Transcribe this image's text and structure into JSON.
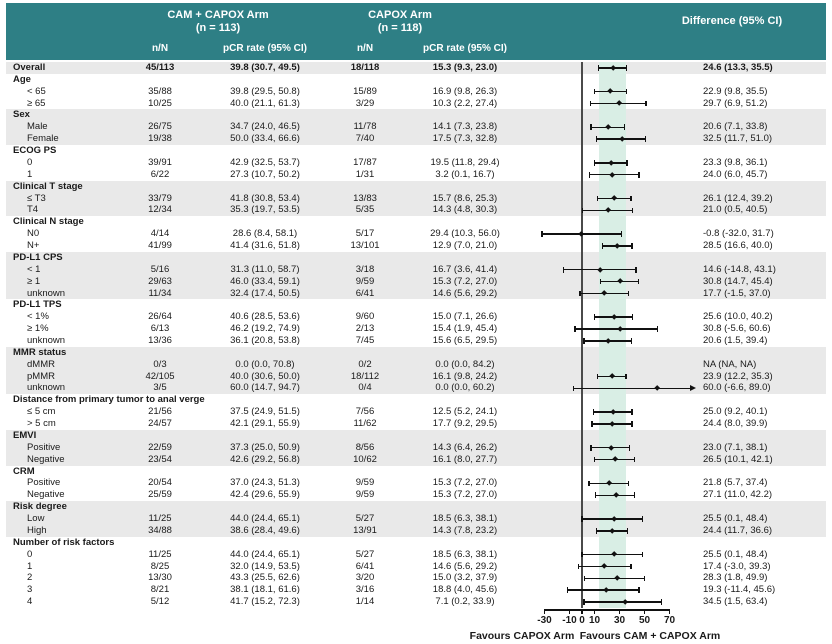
{
  "header": {
    "arm1_title": "CAM + CAPOX Arm",
    "arm1_n": "(n = 113)",
    "arm2_title": "CAPOX Arm",
    "arm2_n": "(n = 118)",
    "difference_title": "Difference (95% CI)",
    "col_nn": "n/N",
    "col_pcr": "pCR rate (95% CI)"
  },
  "footer": {
    "favours_left": "Favours CAPOX Arm",
    "favours_right": "Favours CAM + CAPOX Arm"
  },
  "colors": {
    "header_teal": "#2e7f85",
    "row_shade": "#e9e9e9",
    "overall_ci_band": "#d9eee5",
    "marker": "#111111",
    "zero_line": "#4a4a4a"
  },
  "chart_data": {
    "type": "forest",
    "x_axis": {
      "ticks": [
        -30,
        -10,
        0,
        10,
        30,
        50,
        70
      ],
      "zero_ref": 0,
      "shaded_band": [
        13.3,
        35.5
      ]
    },
    "groups": [
      {
        "name": null,
        "shaded": true,
        "rows": [
          {
            "label": "Overall",
            "bold": true,
            "nn1": "45/113",
            "pcr1": "39.8 (30.7, 49.5)",
            "nn2": "18/118",
            "pcr2": "15.3 (9.3, 23.0)",
            "diff": "24.6 (13.3, 35.5)",
            "est": 24.6,
            "lo": 13.3,
            "hi": 35.5
          }
        ]
      },
      {
        "name": "Age",
        "shaded": false,
        "rows": [
          {
            "label": "< 65",
            "nn1": "35/88",
            "pcr1": "39.8 (29.5, 50.8)",
            "nn2": "15/89",
            "pcr2": "16.9 (9.8, 26.3)",
            "diff": "22.9 (9.8, 35.5)",
            "est": 22.9,
            "lo": 9.8,
            "hi": 35.5
          },
          {
            "label": "≥ 65",
            "nn1": "10/25",
            "pcr1": "40.0 (21.1, 61.3)",
            "nn2": "3/29",
            "pcr2": "10.3 (2.2, 27.4)",
            "diff": "29.7 (6.9, 51.2)",
            "est": 29.7,
            "lo": 6.9,
            "hi": 51.2
          }
        ]
      },
      {
        "name": "Sex",
        "shaded": true,
        "rows": [
          {
            "label": "Male",
            "nn1": "26/75",
            "pcr1": "34.7 (24.0, 46.5)",
            "nn2": "11/78",
            "pcr2": "14.1 (7.3, 23.8)",
            "diff": "20.6 (7.1, 33.8)",
            "est": 20.6,
            "lo": 7.1,
            "hi": 33.8
          },
          {
            "label": "Female",
            "nn1": "19/38",
            "pcr1": "50.0 (33.4, 66.6)",
            "nn2": "7/40",
            "pcr2": "17.5 (7.3, 32.8)",
            "diff": "32.5 (11.7, 51.0)",
            "est": 32.5,
            "lo": 11.7,
            "hi": 51.0
          }
        ]
      },
      {
        "name": "ECOG PS",
        "shaded": false,
        "rows": [
          {
            "label": "0",
            "nn1": "39/91",
            "pcr1": "42.9 (32.5, 53.7)",
            "nn2": "17/87",
            "pcr2": "19.5 (11.8, 29.4)",
            "diff": "23.3 (9.8, 36.1)",
            "est": 23.3,
            "lo": 9.8,
            "hi": 36.1
          },
          {
            "label": "1",
            "nn1": "6/22",
            "pcr1": "27.3 (10.7, 50.2)",
            "nn2": "1/31",
            "pcr2": "3.2 (0.1, 16.7)",
            "diff": "24.0 (6.0, 45.7)",
            "est": 24.0,
            "lo": 6.0,
            "hi": 45.7
          }
        ]
      },
      {
        "name": "Clinical T stage",
        "shaded": true,
        "rows": [
          {
            "label": "≤ T3",
            "nn1": "33/79",
            "pcr1": "41.8 (30.8, 53.4)",
            "nn2": "13/83",
            "pcr2": "15.7 (8.6, 25.3)",
            "diff": "26.1 (12.4, 39.2)",
            "est": 26.1,
            "lo": 12.4,
            "hi": 39.2
          },
          {
            "label": "T4",
            "nn1": "12/34",
            "pcr1": "35.3 (19.7, 53.5)",
            "nn2": "5/35",
            "pcr2": "14.3 (4.8, 30.3)",
            "diff": "21.0 (0.5, 40.5)",
            "est": 21.0,
            "lo": 0.5,
            "hi": 40.5
          }
        ]
      },
      {
        "name": "Clinical N stage",
        "shaded": false,
        "rows": [
          {
            "label": "N0",
            "nn1": "4/14",
            "pcr1": "28.6 (8.4, 58.1)",
            "nn2": "5/17",
            "pcr2": "29.4 (10.3, 56.0)",
            "diff": "-0.8 (-32.0, 31.7)",
            "est": -0.8,
            "lo": -32.0,
            "hi": 31.7
          },
          {
            "label": "N+",
            "nn1": "41/99",
            "pcr1": "41.4 (31.6, 51.8)",
            "nn2": "13/101",
            "pcr2": "12.9 (7.0, 21.0)",
            "diff": "28.5 (16.6, 40.0)",
            "est": 28.5,
            "lo": 16.6,
            "hi": 40.0
          }
        ]
      },
      {
        "name": "PD-L1 CPS",
        "shaded": true,
        "rows": [
          {
            "label": "< 1",
            "nn1": "5/16",
            "pcr1": "31.3 (11.0, 58.7)",
            "nn2": "3/18",
            "pcr2": "16.7 (3.6, 41.4)",
            "diff": "14.6 (-14.8, 43.1)",
            "est": 14.6,
            "lo": -14.8,
            "hi": 43.1
          },
          {
            "label": "≥ 1",
            "nn1": "29/63",
            "pcr1": "46.0 (33.4, 59.1)",
            "nn2": "9/59",
            "pcr2": "15.3 (7.2, 27.0)",
            "diff": "30.8 (14.7, 45.4)",
            "est": 30.8,
            "lo": 14.7,
            "hi": 45.4
          },
          {
            "label": "unknown",
            "nn1": "11/34",
            "pcr1": "32.4 (17.4, 50.5)",
            "nn2": "6/41",
            "pcr2": "14.6 (5.6, 29.2)",
            "diff": "17.7 (-1.5, 37.0)",
            "est": 17.7,
            "lo": -1.5,
            "hi": 37.0
          }
        ]
      },
      {
        "name": "PD-L1 TPS",
        "shaded": false,
        "rows": [
          {
            "label": "< 1%",
            "nn1": "26/64",
            "pcr1": "40.6 (28.5, 53.6)",
            "nn2": "9/60",
            "pcr2": "15.0 (7.1, 26.6)",
            "diff": "25.6 (10.0, 40.2)",
            "est": 25.6,
            "lo": 10.0,
            "hi": 40.2
          },
          {
            "label": "≥ 1%",
            "nn1": "6/13",
            "pcr1": "46.2 (19.2, 74.9)",
            "nn2": "2/13",
            "pcr2": "15.4 (1.9, 45.4)",
            "diff": "30.8 (-5.6, 60.6)",
            "est": 30.8,
            "lo": -5.6,
            "hi": 60.6
          },
          {
            "label": "unknown",
            "nn1": "13/36",
            "pcr1": "36.1 (20.8, 53.8)",
            "nn2": "7/45",
            "pcr2": "15.6 (6.5, 29.5)",
            "diff": "20.6 (1.5, 39.4)",
            "est": 20.6,
            "lo": 1.5,
            "hi": 39.4
          }
        ]
      },
      {
        "name": "MMR status",
        "shaded": true,
        "rows": [
          {
            "label": "dMMR",
            "nn1": "0/3",
            "pcr1": "0.0 (0.0, 70.8)",
            "nn2": "0/2",
            "pcr2": "0.0 (0.0, 84.2)",
            "diff": "NA (NA, NA)",
            "est": null,
            "lo": null,
            "hi": null
          },
          {
            "label": "pMMR",
            "nn1": "42/105",
            "pcr1": "40.0 (30.6, 50.0)",
            "nn2": "18/112",
            "pcr2": "16.1 (9.8, 24.2)",
            "diff": "23.9 (12.2, 35.3)",
            "est": 23.9,
            "lo": 12.2,
            "hi": 35.3
          },
          {
            "label": "unknown",
            "nn1": "3/5",
            "pcr1": "60.0 (14.7, 94.7)",
            "nn2": "0/4",
            "pcr2": "0.0 (0.0, 60.2)",
            "diff": "60.0 (-6.6, 89.0)",
            "est": 60.0,
            "lo": -6.6,
            "hi": 89.0,
            "arrow_right": true
          }
        ]
      },
      {
        "name": "Distance from primary tumor to anal verge",
        "shaded": false,
        "rows": [
          {
            "label": "≤ 5 cm",
            "nn1": "21/56",
            "pcr1": "37.5 (24.9, 51.5)",
            "nn2": "7/56",
            "pcr2": "12.5 (5.2, 24.1)",
            "diff": "25.0 (9.2, 40.1)",
            "est": 25.0,
            "lo": 9.2,
            "hi": 40.1
          },
          {
            "label": "> 5 cm",
            "nn1": "24/57",
            "pcr1": "42.1 (29.1, 55.9)",
            "nn2": "11/62",
            "pcr2": "17.7 (9.2, 29.5)",
            "diff": "24.4 (8.0, 39.9)",
            "est": 24.4,
            "lo": 8.0,
            "hi": 39.9
          }
        ]
      },
      {
        "name": "EMVI",
        "shaded": true,
        "rows": [
          {
            "label": "Positive",
            "nn1": "22/59",
            "pcr1": "37.3 (25.0, 50.9)",
            "nn2": "8/56",
            "pcr2": "14.3 (6.4, 26.2)",
            "diff": "23.0 (7.1, 38.1)",
            "est": 23.0,
            "lo": 7.1,
            "hi": 38.1
          },
          {
            "label": "Negative",
            "nn1": "23/54",
            "pcr1": "42.6 (29.2, 56.8)",
            "nn2": "10/62",
            "pcr2": "16.1 (8.0, 27.7)",
            "diff": "26.5 (10.1, 42.1)",
            "est": 26.5,
            "lo": 10.1,
            "hi": 42.1
          }
        ]
      },
      {
        "name": "CRM",
        "shaded": false,
        "rows": [
          {
            "label": "Positive",
            "nn1": "20/54",
            "pcr1": "37.0 (24.3, 51.3)",
            "nn2": "9/59",
            "pcr2": "15.3 (7.2, 27.0)",
            "diff": "21.8 (5.7, 37.4)",
            "est": 21.8,
            "lo": 5.7,
            "hi": 37.4
          },
          {
            "label": "Negative",
            "nn1": "25/59",
            "pcr1": "42.4 (29.6, 55.9)",
            "nn2": "9/59",
            "pcr2": "15.3 (7.2, 27.0)",
            "diff": "27.1 (11.0, 42.2)",
            "est": 27.1,
            "lo": 11.0,
            "hi": 42.2
          }
        ]
      },
      {
        "name": "Risk degree",
        "shaded": true,
        "rows": [
          {
            "label": "Low",
            "nn1": "11/25",
            "pcr1": "44.0 (24.4, 65.1)",
            "nn2": "5/27",
            "pcr2": "18.5 (6.3, 38.1)",
            "diff": "25.5 (0.1, 48.4)",
            "est": 25.5,
            "lo": 0.1,
            "hi": 48.4
          },
          {
            "label": "High",
            "nn1": "34/88",
            "pcr1": "38.6 (28.4, 49.6)",
            "nn2": "13/91",
            "pcr2": "14.3 (7.8, 23.2)",
            "diff": "24.4 (11.7, 36.6)",
            "est": 24.4,
            "lo": 11.7,
            "hi": 36.6
          }
        ]
      },
      {
        "name": "Number of risk factors",
        "shaded": false,
        "rows": [
          {
            "label": "0",
            "nn1": "11/25",
            "pcr1": "44.0 (24.4, 65.1)",
            "nn2": "5/27",
            "pcr2": "18.5 (6.3, 38.1)",
            "diff": "25.5 (0.1, 48.4)",
            "est": 25.5,
            "lo": 0.1,
            "hi": 48.4
          },
          {
            "label": "1",
            "nn1": "8/25",
            "pcr1": "32.0 (14.9, 53.5)",
            "nn2": "6/41",
            "pcr2": "14.6 (5.6, 29.2)",
            "diff": "17.4 (-3.0, 39.3)",
            "est": 17.4,
            "lo": -3.0,
            "hi": 39.3
          },
          {
            "label": "2",
            "nn1": "13/30",
            "pcr1": "43.3 (25.5, 62.6)",
            "nn2": "3/20",
            "pcr2": "15.0 (3.2, 37.9)",
            "diff": "28.3 (1.8, 49.9)",
            "est": 28.3,
            "lo": 1.8,
            "hi": 49.9
          },
          {
            "label": "3",
            "nn1": "8/21",
            "pcr1": "38.1 (18.1, 61.6)",
            "nn2": "3/16",
            "pcr2": "18.8 (4.0, 45.6)",
            "diff": "19.3 (-11.4, 45.6)",
            "est": 19.3,
            "lo": -11.4,
            "hi": 45.6
          },
          {
            "label": "4",
            "nn1": "5/12",
            "pcr1": "41.7 (15.2, 72.3)",
            "nn2": "1/14",
            "pcr2": "7.1 (0.2, 33.9)",
            "diff": "34.5 (1.5, 63.4)",
            "est": 34.5,
            "lo": 1.5,
            "hi": 63.4
          }
        ]
      }
    ]
  }
}
